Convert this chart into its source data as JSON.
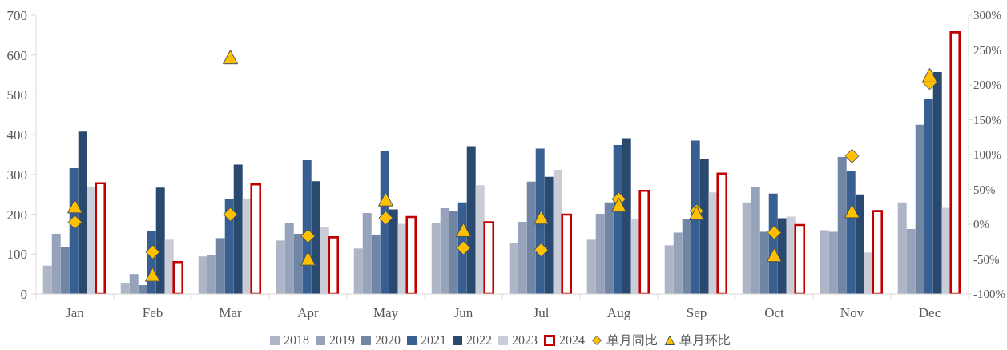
{
  "chart_data": {
    "type": "bar",
    "categories": [
      "Jan",
      "Feb",
      "Mar",
      "Apr",
      "May",
      "Jun",
      "Jul",
      "Aug",
      "Sep",
      "Oct",
      "Nov",
      "Dec"
    ],
    "series": [
      {
        "name": "2018",
        "color": "#aeb5c7",
        "values": [
          71,
          28,
          94,
          134,
          114,
          177,
          128,
          136,
          122,
          230,
          160,
          230
        ]
      },
      {
        "name": "2019",
        "color": "#97a3bb",
        "values": [
          151,
          50,
          97,
          177,
          203,
          215,
          181,
          201,
          154,
          268,
          156,
          163
        ]
      },
      {
        "name": "2020",
        "color": "#7185a5",
        "values": [
          118,
          22,
          140,
          151,
          149,
          208,
          282,
          230,
          187,
          156,
          344,
          425
        ]
      },
      {
        "name": "2021",
        "color": "#375f91",
        "values": [
          316,
          158,
          238,
          336,
          358,
          230,
          365,
          374,
          385,
          252,
          310,
          490
        ]
      },
      {
        "name": "2022",
        "color": "#29496f",
        "values": [
          408,
          267,
          325,
          283,
          212,
          371,
          294,
          391,
          339,
          190,
          250,
          557
        ]
      },
      {
        "name": "2023",
        "color": "#c9cdd8",
        "values": [
          269,
          136,
          240,
          169,
          176,
          273,
          312,
          189,
          255,
          194,
          104,
          216
        ]
      },
      {
        "name": "2024",
        "color": "#c00000",
        "values": [
          278,
          80,
          275,
          142,
          193,
          180,
          199,
          259,
          302,
          173,
          208,
          657
        ]
      },
      {
        "name": "单月同比",
        "type": "scatter",
        "axis": "y2",
        "marker": "diamond",
        "color": "#ffc000",
        "x": [
          "Jan",
          "Feb",
          "Mar",
          "Apr",
          "May",
          "Jun",
          "Jul",
          "Aug",
          "Sep",
          "Oct",
          "Nov",
          "Dec"
        ],
        "values": [
          3,
          -40,
          14,
          -17,
          9,
          -34,
          -37,
          36,
          19,
          -12,
          98,
          203
        ]
      },
      {
        "name": "单月环比",
        "type": "scatter",
        "axis": "y2",
        "marker": "triangle",
        "color": "#ffc000",
        "x": [
          "Jan",
          "Feb",
          "Mar",
          "Apr",
          "May",
          "Jun",
          "Jul",
          "Aug",
          "Sep",
          "Oct",
          "Nov",
          "Dec"
        ],
        "values": [
          26,
          -72,
          240,
          -49,
          36,
          -8,
          10,
          28,
          16,
          -44,
          19,
          214
        ]
      }
    ],
    "ylim": [
      0,
      700
    ],
    "yticks": [
      0,
      100,
      200,
      300,
      400,
      500,
      600,
      700
    ],
    "y2lim": [
      -100,
      300
    ],
    "y2ticks": [
      {
        "value": -100,
        "label": "-100%"
      },
      {
        "value": -50,
        "label": "-50%"
      },
      {
        "value": 0,
        "label": "0%"
      },
      {
        "value": 50,
        "label": "50%"
      },
      {
        "value": 100,
        "label": "100%"
      },
      {
        "value": 150,
        "label": "150%"
      },
      {
        "value": 200,
        "label": "200%"
      },
      {
        "value": 250,
        "label": "250%"
      },
      {
        "value": 300,
        "label": "300%"
      }
    ],
    "legend": "bottom"
  }
}
